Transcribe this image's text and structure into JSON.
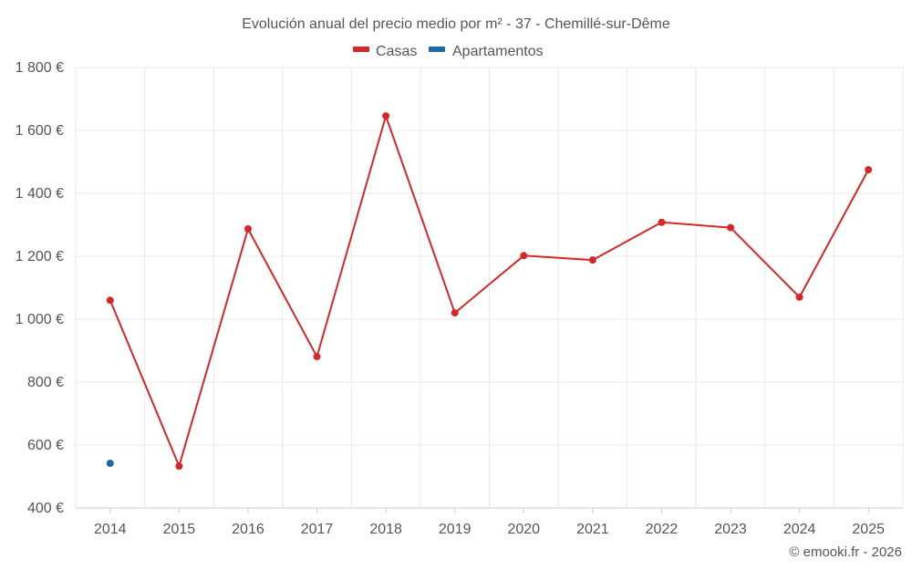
{
  "chart_data": {
    "type": "line",
    "title": "Evolución anual del precio medio por m² - 37 - Chemillé-sur-Dême",
    "categories": [
      "2014",
      "2015",
      "2016",
      "2017",
      "2018",
      "2019",
      "2020",
      "2021",
      "2022",
      "2023",
      "2024",
      "2025"
    ],
    "series": [
      {
        "name": "Casas",
        "color": "#d62728",
        "values": [
          1060,
          533,
          1287,
          881,
          1646,
          1020,
          1202,
          1188,
          1308,
          1291,
          1070,
          1475
        ]
      },
      {
        "name": "Apartamentos",
        "color": "#1f6aa5",
        "values": [
          542,
          null,
          null,
          null,
          null,
          null,
          null,
          null,
          null,
          null,
          null,
          null
        ]
      }
    ],
    "ylim": [
      400,
      1800
    ],
    "yticks": [
      400,
      600,
      800,
      1000,
      1200,
      1400,
      1600,
      1800
    ],
    "ytick_labels": [
      "400 €",
      "600 €",
      "800 €",
      "1 000 €",
      "1 200 €",
      "1 400 €",
      "1 600 €",
      "1 800 €"
    ],
    "grid": true,
    "legend_position": "top-center",
    "xlabel": "",
    "ylabel": ""
  },
  "credit": "© emooki.fr - 2026"
}
